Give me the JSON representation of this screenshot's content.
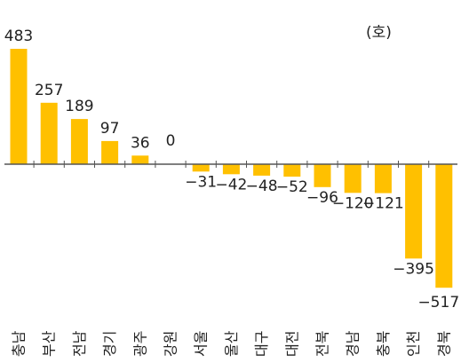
{
  "chart_data": {
    "type": "bar",
    "unit": "(호)",
    "categories": [
      "충남",
      "부산",
      "전남",
      "경기",
      "광주",
      "강원",
      "서울",
      "울산",
      "대구",
      "대전",
      "전북",
      "경남",
      "충북",
      "인천",
      "경북"
    ],
    "values": [
      483,
      257,
      189,
      97,
      36,
      0,
      -31,
      -42,
      -48,
      -52,
      -96,
      -120,
      -121,
      -395,
      -517
    ],
    "value_labels": [
      "483",
      "257",
      "189",
      "97",
      "36",
      "0",
      "−31",
      "−42",
      "−48",
      "−52",
      "−96",
      "−120",
      "−121",
      "−395",
      "−517"
    ],
    "ylim": [
      -517,
      483
    ],
    "grid": false,
    "legend": "none",
    "colors": {
      "bar": "#FFC000",
      "axis": "#555555",
      "text": "#222222"
    }
  }
}
